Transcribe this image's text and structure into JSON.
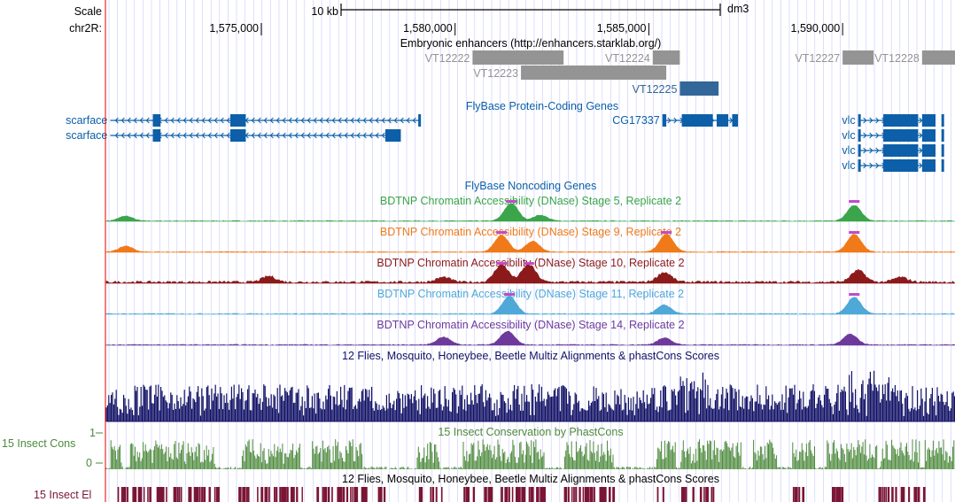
{
  "ruler": {
    "scale_label": "Scale",
    "scale_value": "10 kb",
    "assembly": "dm3",
    "chrom_label": "chr2R:",
    "ticks": [
      "1,575,000",
      "1,580,000",
      "1,585,000",
      "1,590,000"
    ]
  },
  "window": {
    "start": 1571000,
    "end": 1592900
  },
  "colors": {
    "accent": "#e60000",
    "grid": "#c8c8ff",
    "gene": "#0c5fa8",
    "enhancer": "#949494",
    "enhancer_dark": "#336699",
    "multiz": "#111166",
    "cons": "#4d8a3c",
    "elements": "#7a1535"
  },
  "tracks": {
    "enhancers": {
      "title": "Embryonic enhancers (http://enhancers.starklab.org/)",
      "items": [
        {
          "name": "VT12222",
          "start": 1580450,
          "end": 1582800
        },
        {
          "name": "VT12223",
          "start": 1581700,
          "end": 1585450
        },
        {
          "name": "VT12224",
          "start": 1585100,
          "end": 1585800
        },
        {
          "name": "VT12225",
          "start": 1585800,
          "end": 1586800,
          "dark": true
        },
        {
          "name": "VT12227",
          "start": 1590000,
          "end": 1590800
        },
        {
          "name": "VT12228",
          "start": 1592050,
          "end": 1592900
        }
      ]
    },
    "genes": {
      "title": "FlyBase Protein-Coding Genes",
      "items": [
        {
          "name": "scarface",
          "row": 0,
          "start": 1571100,
          "end": 1579100,
          "dir": "-",
          "blocks": [
            [
              1572200,
              1572400
            ],
            [
              1574200,
              1574600
            ],
            [
              1579050,
              1579100
            ]
          ]
        },
        {
          "name": "scarface",
          "row": 1,
          "start": 1571100,
          "end": 1578600,
          "dir": "-",
          "blocks": [
            [
              1572200,
              1572400
            ],
            [
              1574200,
              1574600
            ],
            [
              1578200,
              1578600
            ]
          ]
        },
        {
          "name": "CG17337",
          "row": 0,
          "start": 1585350,
          "end": 1587300,
          "dir": "+",
          "blocks": [
            [
              1585350,
              1585450
            ],
            [
              1585850,
              1586650
            ],
            [
              1586750,
              1587050
            ],
            [
              1587150,
              1587300
            ]
          ]
        },
        {
          "name": "vlc",
          "row": 0,
          "start": 1590400,
          "end": 1593150,
          "dir": "+",
          "blocks": [
            [
              1590400,
              1590450
            ],
            [
              1591050,
              1591950
            ],
            [
              1592050,
              1592450
            ],
            [
              1592550,
              1593150
            ]
          ]
        },
        {
          "name": "vlc",
          "row": 1,
          "start": 1590400,
          "end": 1593150,
          "dir": "+",
          "blocks": [
            [
              1590400,
              1590450
            ],
            [
              1591050,
              1591950
            ],
            [
              1592050,
              1592450
            ],
            [
              1592550,
              1593150
            ]
          ]
        },
        {
          "name": "vlc",
          "row": 2,
          "start": 1590400,
          "end": 1593150,
          "dir": "+",
          "blocks": [
            [
              1590400,
              1590450
            ],
            [
              1591050,
              1591950
            ],
            [
              1592050,
              1592450
            ],
            [
              1592550,
              1593150
            ]
          ]
        },
        {
          "name": "vlc",
          "row": 3,
          "start": 1590400,
          "end": 1593150,
          "dir": "+",
          "blocks": [
            [
              1590400,
              1590450
            ],
            [
              1591050,
              1591950
            ],
            [
              1592050,
              1592450
            ],
            [
              1592550,
              1593150
            ]
          ]
        }
      ]
    },
    "noncoding": {
      "title": "FlyBase Noncoding Genes"
    },
    "dnase": [
      {
        "title": "BDTNP Chromatin Accessibility (DNase) Stage 5, Replicate 2",
        "color": "#3aa54a",
        "peaks": [
          [
            1571500,
            0.25
          ],
          [
            1581450,
            0.9
          ],
          [
            1582200,
            0.3
          ],
          [
            1590300,
            0.8
          ]
        ],
        "noise": 0.04
      },
      {
        "title": "BDTNP Chromatin Accessibility (DNase) Stage 9, Replicate 2",
        "color": "#f07a1a",
        "peaks": [
          [
            1571500,
            0.3
          ],
          [
            1581200,
            0.85
          ],
          [
            1582000,
            0.55
          ],
          [
            1585450,
            0.9
          ],
          [
            1590300,
            0.9
          ]
        ],
        "noise": 0.04
      },
      {
        "title": "BDTNP Chromatin Accessibility (DNase) Stage 10, Replicate 2",
        "color": "#8c1a1a",
        "peaks": [
          [
            1575200,
            0.3
          ],
          [
            1579700,
            0.25
          ],
          [
            1581200,
            0.9
          ],
          [
            1581900,
            0.9
          ],
          [
            1585400,
            0.5
          ],
          [
            1590400,
            0.6
          ],
          [
            1591500,
            0.25
          ]
        ],
        "noise": 0.12
      },
      {
        "title": "BDTNP Chromatin Accessibility (DNase) Stage 11, Replicate 2",
        "color": "#4ea8d8",
        "peaks": [
          [
            1581400,
            0.9
          ],
          [
            1585400,
            0.45
          ],
          [
            1590300,
            0.85
          ]
        ],
        "noise": 0.05
      },
      {
        "title": "BDTNP Chromatin Accessibility (DNase) Stage 14, Replicate 2",
        "color": "#6d3a9c",
        "peaks": [
          [
            1579700,
            0.4
          ],
          [
            1581350,
            0.7
          ],
          [
            1585400,
            0.35
          ],
          [
            1590200,
            0.55
          ]
        ],
        "noise": 0.05
      }
    ],
    "multiz": {
      "title": "12 Flies, Mosquito, Honeybee, Beetle Multiz Alignments & phastCons Scores"
    },
    "cons": {
      "side_label": "15 Insect Cons",
      "y_max": "1",
      "y_min": "0",
      "title": "15 Insect Conservation by PhastCons"
    },
    "elements": {
      "side_label": "15 Insect El",
      "title": "12 Flies, Mosquito, Honeybee, Beetle Multiz Alignments & phastCons Scores"
    }
  }
}
